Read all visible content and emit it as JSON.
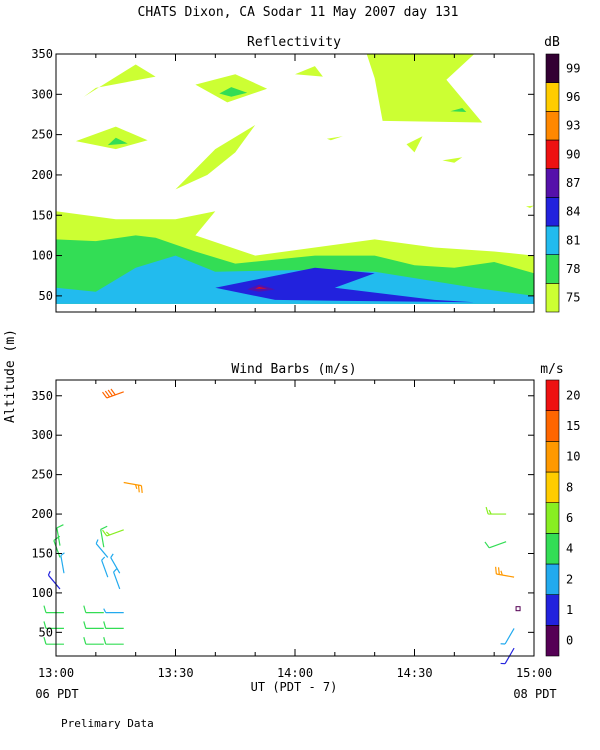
{
  "title": "CHATS Dixon, CA  Sodar  11 May 2007  day 131",
  "footer_note": "Prelimary Data",
  "y_label": "Altitude (m)",
  "x_label": "UT  (PDT - 7)",
  "x_ticks": [
    "13:00",
    "13:30",
    "14:00",
    "14:30",
    "15:00"
  ],
  "x_tick_values": [
    0,
    30,
    60,
    90,
    120
  ],
  "date_left": "06 PDT",
  "date_right": "08 PDT",
  "chart_data": [
    {
      "type": "heatmap",
      "title": "Reflectivity",
      "colorbar_unit": "dB",
      "colorbar_labels": [
        "75",
        "78",
        "81",
        "84",
        "87",
        "90",
        "93",
        "96",
        "99"
      ],
      "colorbar_levels": [
        75,
        78,
        81,
        84,
        87,
        90,
        93,
        96,
        99
      ],
      "level_colors": [
        "#ccff33",
        "#33dd55",
        "#22bbee",
        "#2222dd",
        "#5511aa",
        "#ee1111",
        "#ff8800",
        "#ffcc00",
        "#330033"
      ],
      "xlabel": "UT  (PDT - 7)",
      "ylabel": "Altitude (m)",
      "xlim": [
        "13:00",
        "15:00"
      ],
      "ylim": [
        30,
        350
      ],
      "yticks": [
        50,
        100,
        150,
        200,
        250,
        300,
        350
      ],
      "regions": [
        {
          "level": 75,
          "points": [
            [
              "13:00",
              40
            ],
            [
              "13:00",
              155
            ],
            [
              "13:15",
              145
            ],
            [
              "13:30",
              145
            ],
            [
              "13:40",
              155
            ],
            [
              "13:35",
              125
            ],
            [
              "13:50",
              100
            ],
            [
              "14:05",
              110
            ],
            [
              "14:20",
              120
            ],
            [
              "14:35",
              110
            ],
            [
              "14:50",
              105
            ],
            [
              "15:00",
              100
            ],
            [
              "15:00",
              40
            ]
          ]
        },
        {
          "level": 75,
          "points": [
            [
              "13:07",
              297
            ],
            [
              "13:20",
              337
            ],
            [
              "13:25",
              322
            ],
            [
              "13:10",
              308
            ]
          ]
        },
        {
          "level": 75,
          "points": [
            [
              "13:05",
              242
            ],
            [
              "13:15",
              260
            ],
            [
              "13:23",
              243
            ],
            [
              "13:15",
              232
            ]
          ]
        },
        {
          "level": 75,
          "points": [
            [
              "13:30",
              182
            ],
            [
              "13:40",
              232
            ],
            [
              "13:50",
              262
            ],
            [
              "13:45",
              228
            ],
            [
              "13:38",
              200
            ]
          ]
        },
        {
          "level": 75,
          "points": [
            [
              "13:35",
              312
            ],
            [
              "13:45",
              325
            ],
            [
              "13:53",
              307
            ],
            [
              "13:43",
              290
            ]
          ]
        },
        {
          "level": 75,
          "points": [
            [
              "14:18",
              350
            ],
            [
              "14:45",
              350
            ],
            [
              "14:38",
              318
            ],
            [
              "14:47",
              265
            ],
            [
              "14:22",
              267
            ],
            [
              "14:20",
              320
            ]
          ]
        },
        {
          "level": 75,
          "points": [
            [
              "14:00",
              325
            ],
            [
              "14:05",
              335
            ],
            [
              "14:07",
              322
            ]
          ]
        },
        {
          "level": 75,
          "points": [
            [
              "14:28",
              238
            ],
            [
              "14:32",
              248
            ],
            [
              "14:30",
              228
            ]
          ]
        },
        {
          "level": 75,
          "points": [
            [
              "14:37",
              218
            ],
            [
              "14:42",
              222
            ],
            [
              "14:40",
              215
            ]
          ]
        },
        {
          "level": 75,
          "points": [
            [
              "14:08",
              245
            ],
            [
              "14:12",
              248
            ],
            [
              "14:09",
              243
            ]
          ]
        },
        {
          "level": 75,
          "points": [
            [
              "14:58",
              161
            ],
            [
              "15:00",
              162
            ],
            [
              "14:59",
              159
            ]
          ]
        },
        {
          "level": 78,
          "points": [
            [
              "13:00",
              40
            ],
            [
              "13:00",
              120
            ],
            [
              "13:10",
              118
            ],
            [
              "13:20",
              125
            ],
            [
              "13:25",
              122
            ],
            [
              "13:35",
              105
            ],
            [
              "13:45",
              90
            ],
            [
              "13:55",
              95
            ],
            [
              "14:05",
              100
            ],
            [
              "14:20",
              100
            ],
            [
              "14:30",
              88
            ],
            [
              "14:40",
              85
            ],
            [
              "14:50",
              92
            ],
            [
              "15:00",
              78
            ],
            [
              "15:00",
              40
            ]
          ]
        },
        {
          "level": 78,
          "points": [
            [
              "13:13",
              237
            ],
            [
              "13:15",
              246
            ],
            [
              "13:18",
              239
            ]
          ]
        },
        {
          "level": 78,
          "points": [
            [
              "13:41",
              301
            ],
            [
              "13:44",
              309
            ],
            [
              "13:48",
              302
            ],
            [
              "13:44",
              297
            ]
          ]
        },
        {
          "level": 78,
          "points": [
            [
              "14:39",
              279
            ],
            [
              "14:42",
              283
            ],
            [
              "14:43",
              278
            ]
          ]
        },
        {
          "level": 81,
          "points": [
            [
              "13:00",
              40
            ],
            [
              "13:00",
              60
            ],
            [
              "13:10",
              55
            ],
            [
              "13:20",
              85
            ],
            [
              "13:30",
              100
            ],
            [
              "13:40",
              80
            ],
            [
              "14:00",
              82
            ],
            [
              "14:20",
              80
            ],
            [
              "14:45",
              60
            ],
            [
              "15:00",
              50
            ],
            [
              "15:00",
              40
            ]
          ]
        },
        {
          "level": 84,
          "points": [
            [
              "13:40",
              60
            ],
            [
              "13:55",
              75
            ],
            [
              "14:05",
              85
            ],
            [
              "14:20",
              78
            ],
            [
              "14:10",
              60
            ],
            [
              "14:35",
              45
            ],
            [
              "14:45",
              42
            ],
            [
              "14:10",
              44
            ],
            [
              "13:55",
              45
            ]
          ]
        },
        {
          "level": 87,
          "points": [
            [
              "13:48",
              58
            ],
            [
              "13:51",
              64
            ],
            [
              "13:55",
              58
            ],
            [
              "13:51",
              55
            ]
          ]
        },
        {
          "level": 90,
          "points": [
            [
              "13:50",
              59
            ],
            [
              "13:51",
              61
            ],
            [
              "13:53",
              59
            ]
          ]
        }
      ]
    },
    {
      "type": "wind_barbs",
      "title": "Wind Barbs (m/s)",
      "colorbar_unit": "m/s",
      "colorbar_labels": [
        "0",
        "1",
        "2",
        "4",
        "6",
        "8",
        "10",
        "15",
        "20"
      ],
      "colorbar_levels": [
        0,
        1,
        2,
        4,
        6,
        8,
        10,
        15,
        20
      ],
      "level_colors": [
        "#550055",
        "#2222dd",
        "#22aaee",
        "#33dd55",
        "#88ee22",
        "#ffcc00",
        "#ff9900",
        "#ff6600",
        "#ee1111"
      ],
      "xlabel": "UT  (PDT - 7)",
      "ylabel": "Altitude (m)",
      "xlim": [
        "13:00",
        "15:00"
      ],
      "ylim": [
        20,
        370
      ],
      "yticks": [
        50,
        100,
        150,
        200,
        250,
        300,
        350
      ],
      "barbs": [
        {
          "time": "13:02",
          "height": 35,
          "dir": 270,
          "speed": 4
        },
        {
          "time": "13:02",
          "height": 55,
          "dir": 270,
          "speed": 4
        },
        {
          "time": "13:02",
          "height": 75,
          "dir": 270,
          "speed": 4
        },
        {
          "time": "13:01",
          "height": 105,
          "dir": 320,
          "speed": 1
        },
        {
          "time": "13:02",
          "height": 125,
          "dir": 350,
          "speed": 2
        },
        {
          "time": "13:01",
          "height": 145,
          "dir": 340,
          "speed": 4
        },
        {
          "time": "13:01",
          "height": 160,
          "dir": 350,
          "speed": 4
        },
        {
          "time": "13:12",
          "height": 35,
          "dir": 270,
          "speed": 4
        },
        {
          "time": "13:12",
          "height": 55,
          "dir": 270,
          "speed": 4
        },
        {
          "time": "13:12",
          "height": 75,
          "dir": 270,
          "speed": 4
        },
        {
          "time": "13:13",
          "height": 120,
          "dir": 340,
          "speed": 2
        },
        {
          "time": "13:13",
          "height": 145,
          "dir": 320,
          "speed": 2
        },
        {
          "time": "13:12",
          "height": 158,
          "dir": 350,
          "speed": 4
        },
        {
          "time": "13:17",
          "height": 35,
          "dir": 270,
          "speed": 4
        },
        {
          "time": "13:17",
          "height": 55,
          "dir": 270,
          "speed": 4
        },
        {
          "time": "13:17",
          "height": 75,
          "dir": 270,
          "speed": 2
        },
        {
          "time": "13:16",
          "height": 105,
          "dir": 340,
          "speed": 2
        },
        {
          "time": "13:16",
          "height": 125,
          "dir": 330,
          "speed": 2
        },
        {
          "time": "13:17",
          "height": 180,
          "dir": 250,
          "speed": 6
        },
        {
          "time": "13:17",
          "height": 240,
          "dir": 100,
          "speed": 10
        },
        {
          "time": "13:17",
          "height": 355,
          "dir": 250,
          "speed": 15
        },
        {
          "time": "14:55",
          "height": 30,
          "dir": 210,
          "speed": 1
        },
        {
          "time": "14:55",
          "height": 55,
          "dir": 210,
          "speed": 2
        },
        {
          "time": "14:56",
          "height": 80,
          "dir": 0,
          "speed": 0
        },
        {
          "time": "14:55",
          "height": 120,
          "dir": 280,
          "speed": 10
        },
        {
          "time": "14:53",
          "height": 165,
          "dir": 250,
          "speed": 4
        },
        {
          "time": "14:53",
          "height": 200,
          "dir": 270,
          "speed": 6
        }
      ]
    }
  ]
}
